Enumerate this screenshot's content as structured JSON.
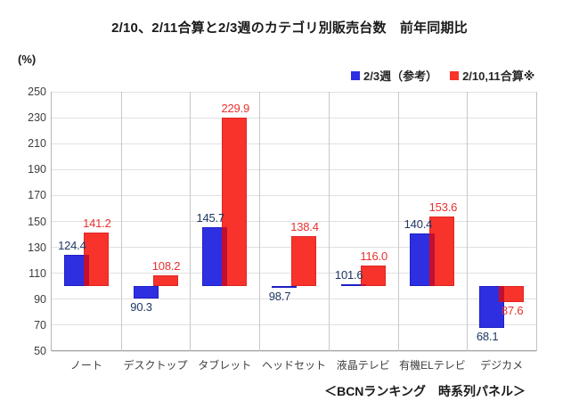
{
  "page": {
    "title": "2/10、2/11合算と2/3週のカテゴリ別販売台数　前年同期比",
    "unit_label": "(%)",
    "footer": "＜BCNランキング　時系列パネル＞"
  },
  "colors": {
    "blue_bar": "#2f2fe2",
    "blue_bar_edge": "#1f1fc4",
    "red_bar": "#f8332b",
    "red_bar_edge": "#dd2721",
    "overlap": "#c00f31",
    "blue_label": "#1f3864",
    "red_label": "#e8312e"
  },
  "chart_data": {
    "type": "bar",
    "title": "2/10、2/11合算と2/3週のカテゴリ別販売台数　前年同期比",
    "ylabel": "(%)",
    "categories": [
      "ノート",
      "デスクトップ",
      "タブレット",
      "ヘッドセット",
      "液晶テレビ",
      "有機ELテレビ",
      "デジカメ"
    ],
    "series": [
      {
        "name": "2/3週（参考）",
        "color": "blue",
        "values": [
          124.4,
          90.3,
          145.7,
          98.7,
          101.6,
          140.4,
          68.1
        ]
      },
      {
        "name": "2/10,11合算※",
        "color": "red",
        "values": [
          141.2,
          108.2,
          229.9,
          138.4,
          116.0,
          153.6,
          87.6
        ]
      }
    ],
    "baseline": 100,
    "ylim": [
      50,
      250
    ],
    "yticks": [
      250,
      230,
      210,
      190,
      170,
      150,
      130,
      110,
      90,
      70,
      50
    ],
    "grid": true,
    "legend_position": "top-right",
    "annotation": "＜BCNランキング　時系列パネル＞"
  }
}
